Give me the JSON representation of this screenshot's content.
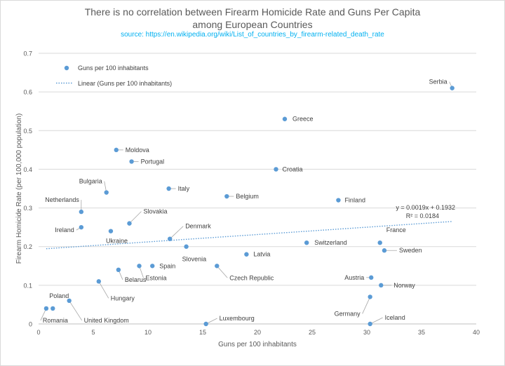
{
  "chart_data": {
    "type": "scatter",
    "title_line1": "There is no correlation between Firearm Homicide Rate and Guns Per Capita",
    "title_line2": "among European Countries",
    "subtitle": "source: https://en.wikipedia.org/wiki/List_of_countries_by_firearm-related_death_rate",
    "xlabel": "Guns per 100 inhabitants",
    "ylabel": "Firearm Homicide Rate (per 100,000 population)",
    "xlim": [
      0,
      40
    ],
    "ylim": [
      0,
      0.7
    ],
    "x_ticks": [
      0,
      5,
      10,
      15,
      20,
      25,
      30,
      35,
      40
    ],
    "y_ticks": [
      0,
      0.1,
      0.2,
      0.3,
      0.4,
      0.5,
      0.6,
      0.7
    ],
    "x_tick_labels": [
      "0",
      "5",
      "10",
      "15",
      "20",
      "25",
      "30",
      "35",
      "40"
    ],
    "y_tick_labels": [
      "0",
      "0.1",
      "0.2",
      "0.3",
      "0.4",
      "0.5",
      "0.6",
      "0.7"
    ],
    "grid": "horizontal",
    "legend": {
      "position": "top-left",
      "series_label": "Guns per 100 inhabitants",
      "trend_label": "Linear (Guns per 100 inhabitants)"
    },
    "series_color": "#5b9bd5",
    "trendline": {
      "slope": 0.0019,
      "intercept": 0.1932,
      "equation": "y = 0.0019x + 0.1932",
      "r_squared": "R² = 0.0184"
    },
    "points": [
      {
        "label": "Serbia",
        "x": 37.8,
        "y": 0.61
      },
      {
        "label": "Greece",
        "x": 22.5,
        "y": 0.53
      },
      {
        "label": "Moldova",
        "x": 7.1,
        "y": 0.45
      },
      {
        "label": "Portugal",
        "x": 8.5,
        "y": 0.42
      },
      {
        "label": "Croatia",
        "x": 21.7,
        "y": 0.4
      },
      {
        "label": "Bulgaria",
        "x": 6.2,
        "y": 0.34
      },
      {
        "label": "Italy",
        "x": 11.9,
        "y": 0.35
      },
      {
        "label": "Belgium",
        "x": 17.2,
        "y": 0.33
      },
      {
        "label": "Finland",
        "x": 27.4,
        "y": 0.32
      },
      {
        "label": "Netherlands",
        "x": 3.9,
        "y": 0.29
      },
      {
        "label": "Slovakia",
        "x": 8.3,
        "y": 0.26
      },
      {
        "label": "Ireland",
        "x": 3.9,
        "y": 0.25
      },
      {
        "label": "Ukraine",
        "x": 6.6,
        "y": 0.24
      },
      {
        "label": "Denmark",
        "x": 12.0,
        "y": 0.22
      },
      {
        "label": "France",
        "x": 31.2,
        "y": 0.21
      },
      {
        "label": "Switzerland",
        "x": 24.5,
        "y": 0.21
      },
      {
        "label": "Slovenia",
        "x": 13.5,
        "y": 0.2
      },
      {
        "label": "Sweden",
        "x": 31.6,
        "y": 0.19
      },
      {
        "label": "Latvia",
        "x": 19.0,
        "y": 0.18
      },
      {
        "label": "Spain",
        "x": 10.4,
        "y": 0.15
      },
      {
        "label": "Estonia",
        "x": 9.2,
        "y": 0.15
      },
      {
        "label": "Czech Republic",
        "x": 16.3,
        "y": 0.15
      },
      {
        "label": "Belarus",
        "x": 7.3,
        "y": 0.14
      },
      {
        "label": "Austria",
        "x": 30.4,
        "y": 0.12
      },
      {
        "label": "Hungary",
        "x": 5.5,
        "y": 0.11
      },
      {
        "label": "Norway",
        "x": 31.3,
        "y": 0.1
      },
      {
        "label": "Germany",
        "x": 30.3,
        "y": 0.07
      },
      {
        "label": "United Kingdom",
        "x": 2.8,
        "y": 0.06
      },
      {
        "label": "Poland",
        "x": 1.3,
        "y": 0.04
      },
      {
        "label": "Romania",
        "x": 0.7,
        "y": 0.04
      },
      {
        "label": "Luxembourg",
        "x": 15.3,
        "y": 0.0
      },
      {
        "label": "Iceland",
        "x": 30.3,
        "y": 0.0
      }
    ]
  }
}
